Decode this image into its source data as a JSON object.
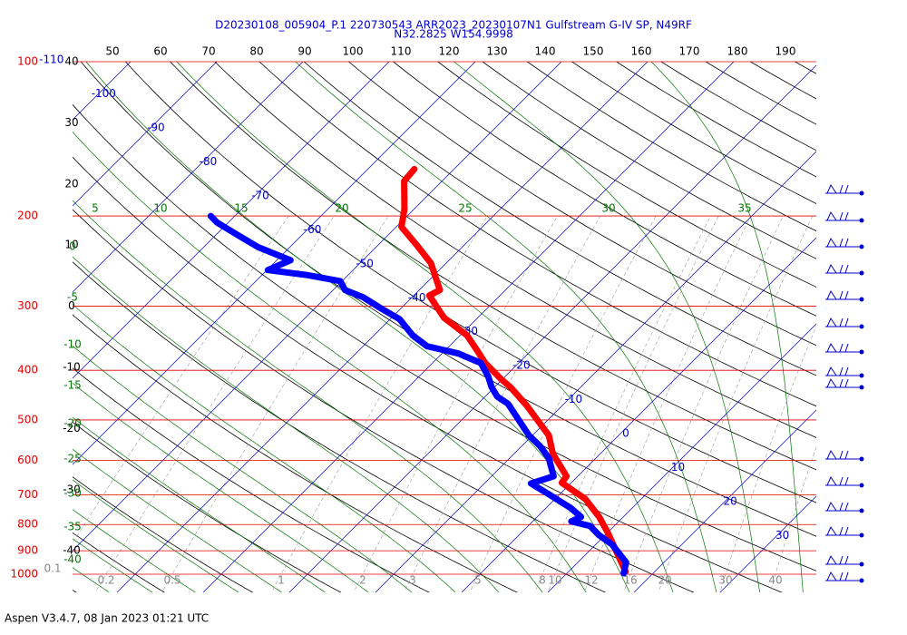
{
  "chart_data": {
    "type": "skewt",
    "title": "D20230108_005904_P.1 220730543 ARR2023_20230107N1 Gulfstream G-IV SP, N49RF",
    "subtitle": "N32.2825 W154.9998",
    "footer": "Aspen V3.4.7, 08 Jan 2023  01:21 UTC",
    "yscale": "log",
    "ylim": [
      1000,
      100
    ],
    "yticks": [
      100,
      200,
      300,
      400,
      500,
      600,
      700,
      800,
      900,
      1000
    ],
    "ytick_color": "#e00000",
    "isotherm_labels": [
      -110,
      -100,
      -90,
      -80,
      -70,
      -60,
      -50,
      -40,
      -30,
      -20,
      -10,
      0,
      10,
      20,
      30
    ],
    "isotherm_color": "#0000cc",
    "theta_labels": [
      50,
      60,
      70,
      80,
      90,
      100,
      110,
      120,
      130,
      140,
      150,
      160,
      170,
      180,
      190
    ],
    "left_labels": [
      40,
      30,
      20,
      10,
      0,
      -10,
      -20,
      -30,
      -40
    ],
    "moist_top_labels": [
      5,
      10,
      15,
      20,
      25,
      30,
      35
    ],
    "moist_left_labels": [
      0,
      -5,
      -10,
      -15,
      -20,
      -25,
      -30,
      -35,
      -40
    ],
    "moist_color": "#007700",
    "mixing_ratio_labels": [
      0.1,
      0.2,
      0.5,
      1,
      2,
      3,
      5,
      8,
      10,
      12,
      16,
      20,
      30,
      40
    ],
    "series": [
      {
        "color": "#ff0000",
        "pressure": [
          162,
          171,
          194,
          210,
          228,
          247,
          279,
          286,
          316,
          342,
          364,
          387,
          416,
          432,
          468,
          536,
          582,
          644,
          663,
          713,
          773,
          829,
          988
        ],
        "values": [
          -54.6,
          -54.4,
          -51.1,
          -49.4,
          -45.5,
          -41.8,
          -37.6,
          -38.2,
          -33.9,
          -29.2,
          -26.5,
          -23.9,
          -20.2,
          -18.1,
          -14.2,
          -8.1,
          -5.5,
          -1.3,
          -1.1,
          3.5,
          7.2,
          10.0,
          16.6
        ]
      },
      {
        "color": "#0000ff",
        "pressure": [
          200,
          206,
          219,
          230,
          244,
          255,
          261,
          268,
          279,
          288,
          303,
          318,
          342,
          359,
          364,
          371,
          387,
          411,
          432,
          450,
          465,
          536,
          562,
          593,
          644,
          665,
          698,
          743,
          773,
          789,
          805,
          839,
          875,
          948,
          996
        ],
        "values": [
          -72.8,
          -71.3,
          -67.1,
          -63.7,
          -58.4,
          -59.9,
          -54.6,
          -50.2,
          -48.6,
          -45.7,
          -42.3,
          -38.9,
          -35.5,
          -32.6,
          -30.7,
          -28.1,
          -24.4,
          -22.0,
          -20.3,
          -18.6,
          -16.5,
          -10.4,
          -7.9,
          -5.5,
          -2.8,
          -4.6,
          -1.3,
          2.9,
          5.1,
          4.5,
          7.2,
          9.3,
          11.9,
          15.6,
          16.6
        ]
      }
    ]
  }
}
